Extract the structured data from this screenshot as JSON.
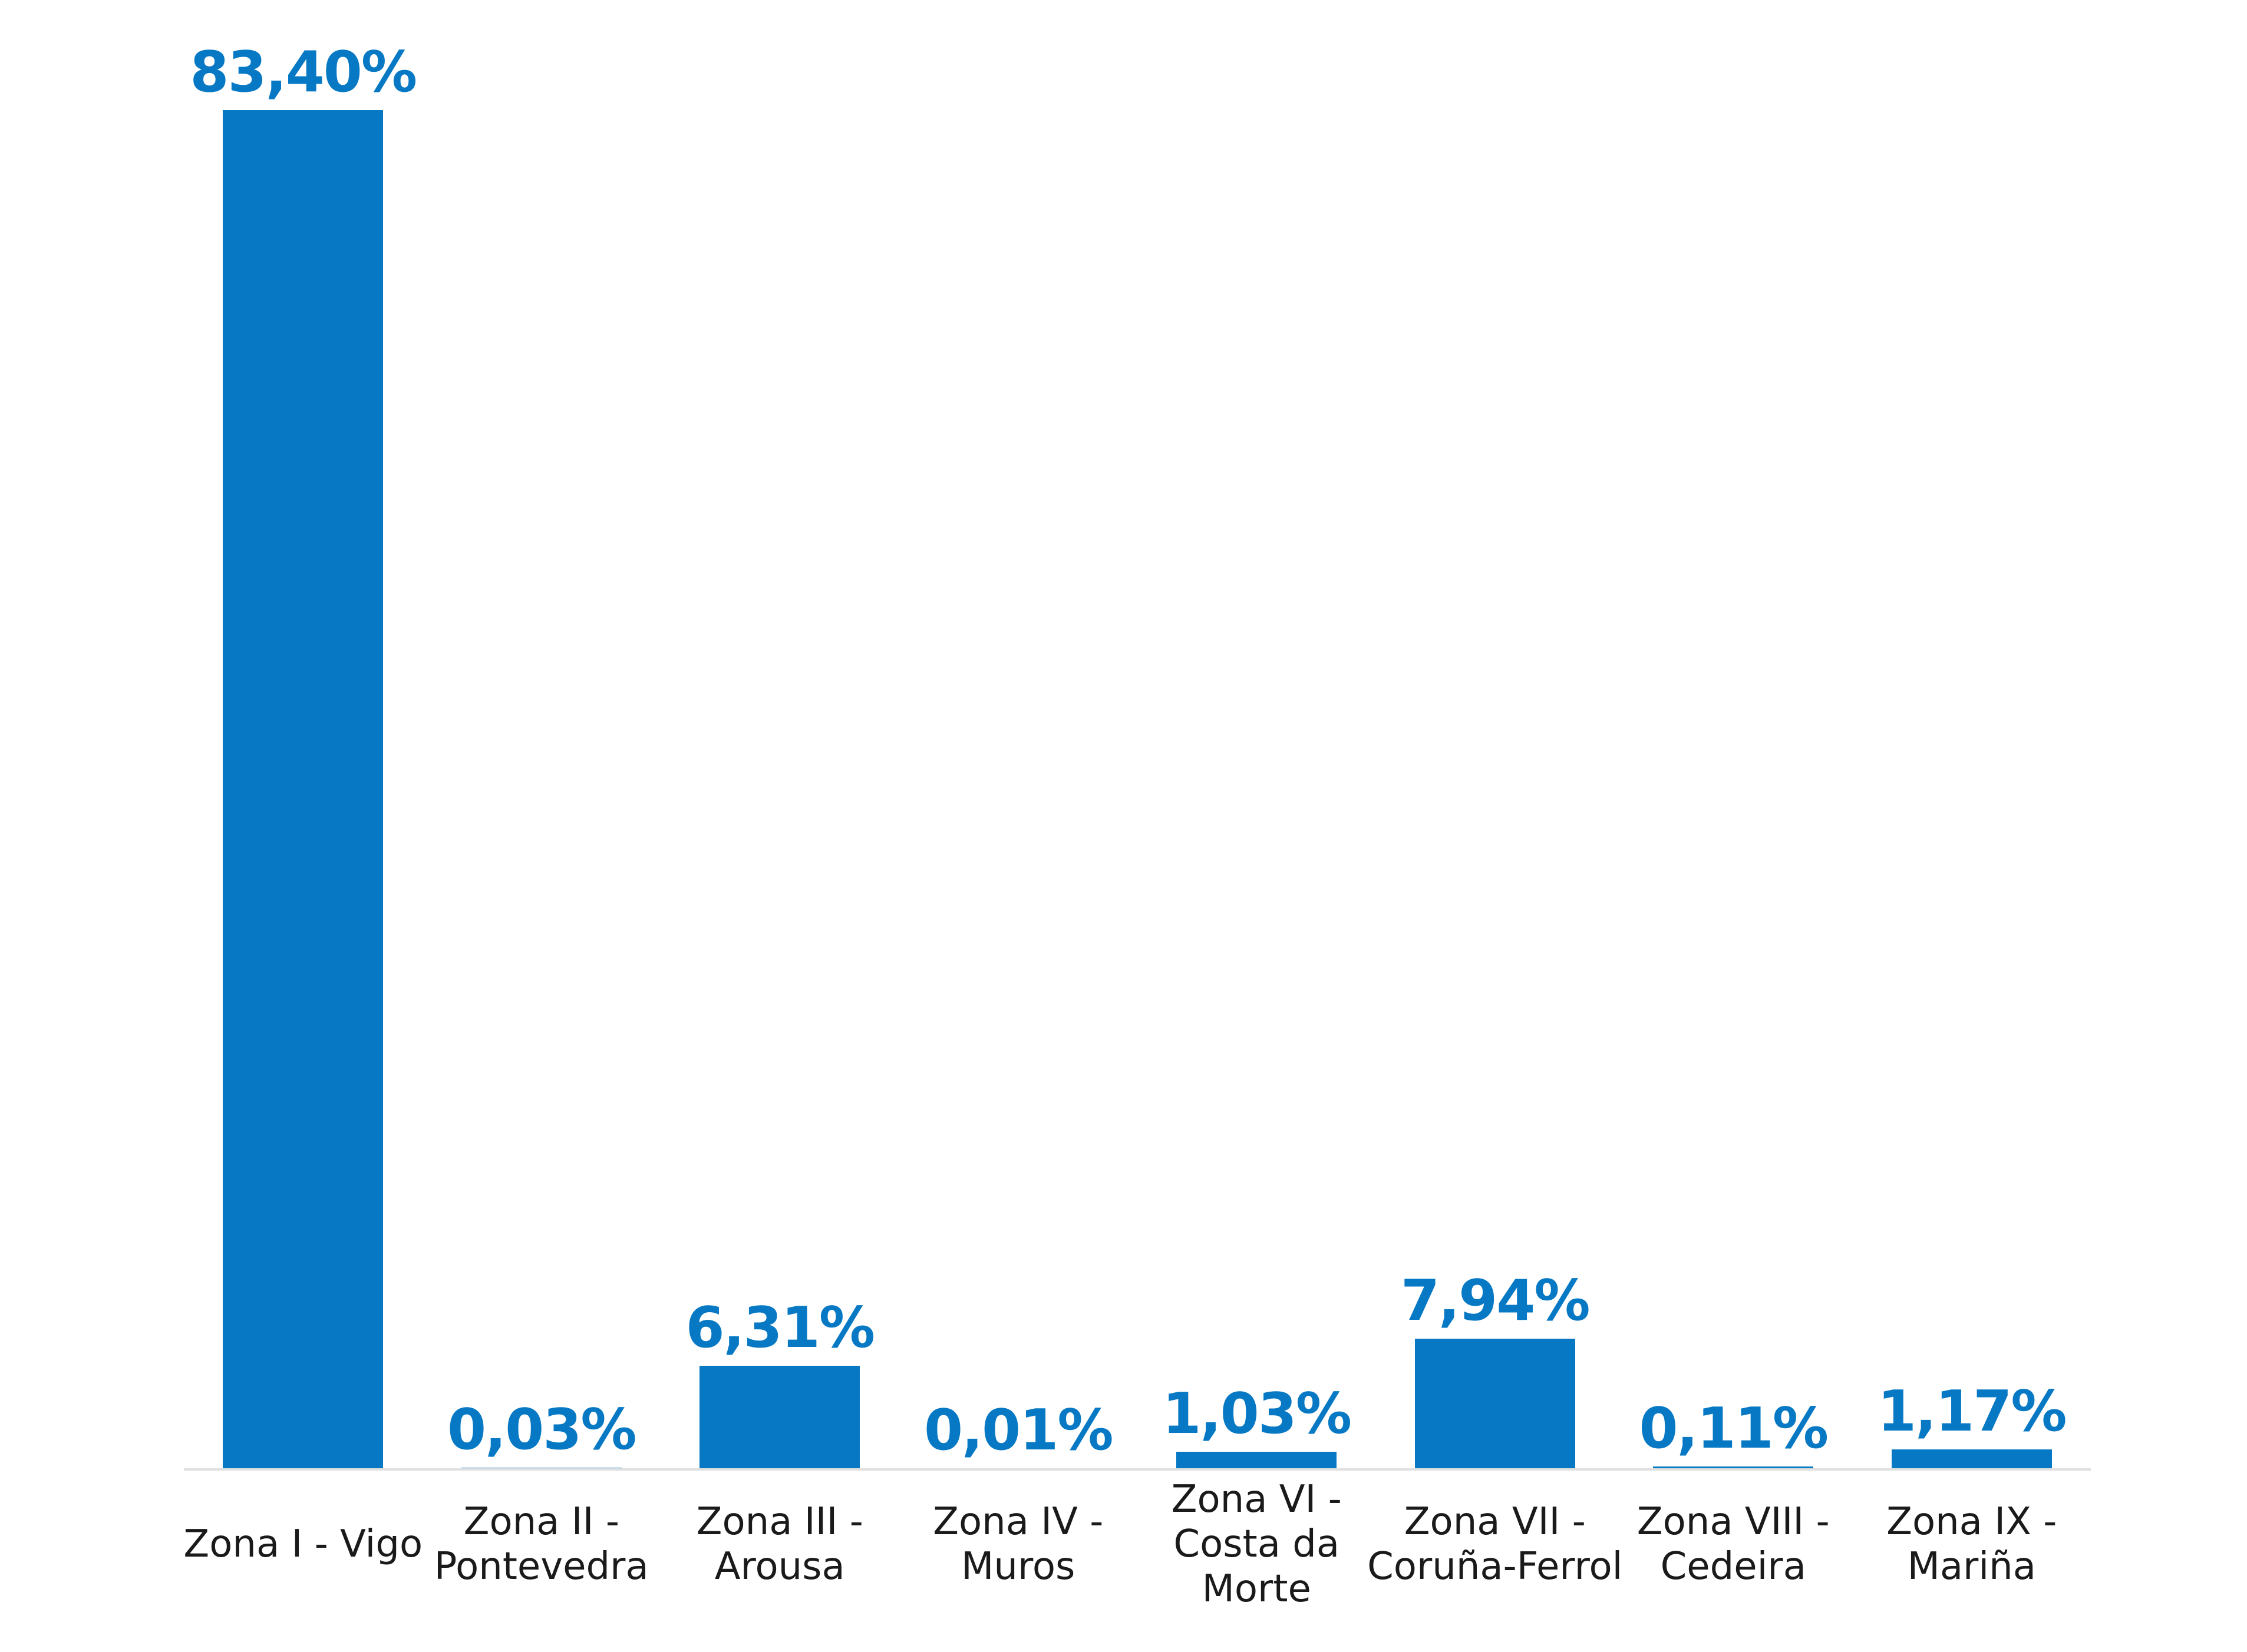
{
  "chart_data": {
    "type": "bar",
    "title": "",
    "xlabel": "",
    "ylabel": "",
    "categories": [
      "Zona I - Vigo",
      "Zona II - Pontevedra",
      "Zona III - Arousa",
      "Zona IV - Muros",
      "Zona VI - Costa da Morte",
      "Zona VII - Coruña-Ferrol",
      "Zona VIII - Cedeira",
      "Zona IX - Mariña"
    ],
    "category_label_lines": [
      [
        "Zona I - Vigo"
      ],
      [
        "Zona II -",
        "Pontevedra"
      ],
      [
        "Zona III -",
        "Arousa"
      ],
      [
        "Zona IV -",
        "Muros"
      ],
      [
        "Zona VI -",
        "Costa da",
        "Morte"
      ],
      [
        "Zona VII -",
        "Coruña-Ferrol"
      ],
      [
        "Zona VIII -",
        "Cedeira"
      ],
      [
        "Zona IX -",
        "Mariña"
      ]
    ],
    "values": [
      83.4,
      0.03,
      6.31,
      0.01,
      1.03,
      7.94,
      0.11,
      1.17
    ],
    "value_labels": [
      "83,40%",
      "0,03%",
      "6,31%",
      "0,01%",
      "1,03%",
      "7,94%",
      "0,11%",
      "1,17%"
    ],
    "ylim": [
      0,
      90
    ],
    "grid": false,
    "legend": false,
    "bar_color": "#0779c4",
    "value_label_color": "#0779c4",
    "category_label_color": "#1a1a1a",
    "axis_line_color": "#e0e0e0",
    "background_color": "#ffffff"
  }
}
